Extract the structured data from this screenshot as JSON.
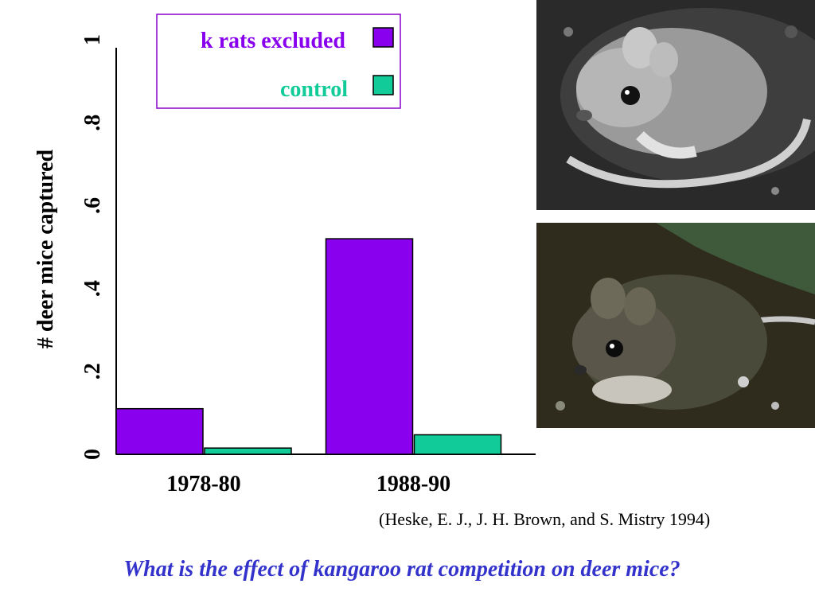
{
  "chart_data": {
    "type": "bar",
    "categories": [
      "1978-80",
      "1988-90"
    ],
    "series": [
      {
        "name": "k rats excluded",
        "values": [
          0.11,
          0.52
        ],
        "color": "#8800ee"
      },
      {
        "name": "control",
        "values": [
          0.015,
          0.047
        ],
        "color": "#11cc99"
      }
    ],
    "ylabel": "# deer mice captured",
    "yticks": [
      {
        "value": 0,
        "label": "0"
      },
      {
        "value": 0.2,
        "label": ".2"
      },
      {
        "value": 0.4,
        "label": ".4"
      },
      {
        "value": 0.6,
        "label": ".6"
      },
      {
        "value": 0.8,
        "label": ".8"
      },
      {
        "value": 1,
        "label": "1"
      }
    ],
    "ylim": [
      0,
      1
    ],
    "legend_placement": "top",
    "grid": false
  },
  "photos": {
    "top_icon": "kangaroo-rat-photo",
    "bottom_icon": "deer-mouse-photo"
  },
  "citation": "(Heske, E. J., J. H. Brown, and S. Mistry 1994)",
  "question": "What is the effect of kangaroo rat competition on deer mice?"
}
